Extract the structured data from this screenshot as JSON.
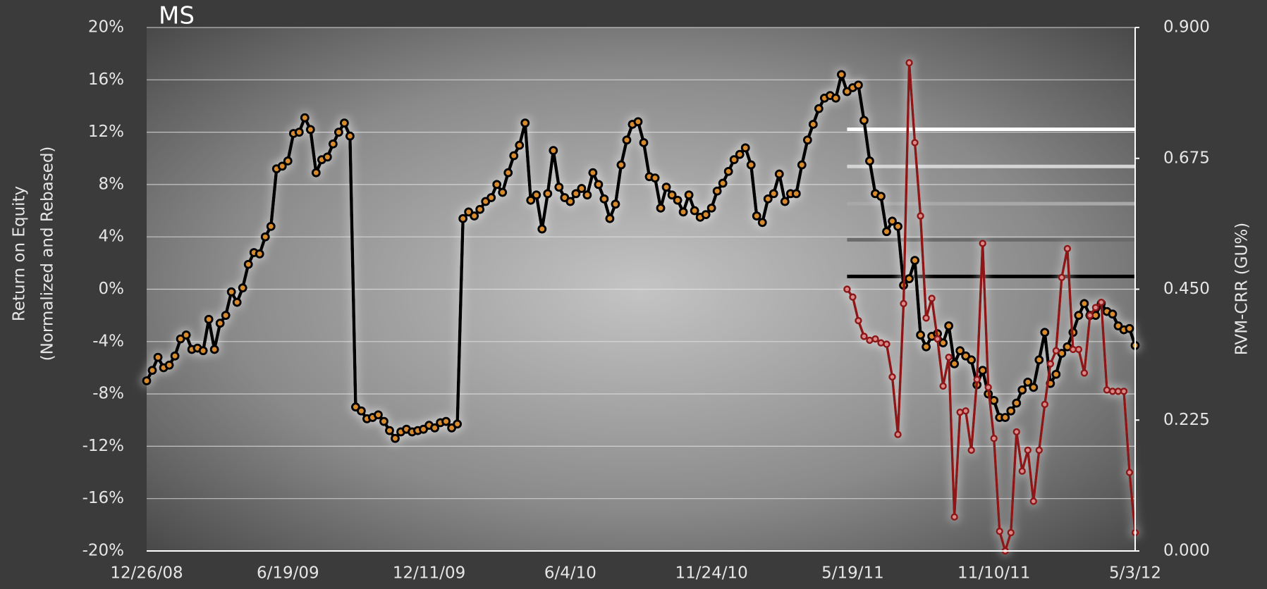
{
  "chart_data": {
    "type": "line",
    "title": "MS",
    "ylabel": [
      "Return on Equity",
      "(Normalized and Rebased)"
    ],
    "y2label": "RVM-CRR (GU%)",
    "categories": [
      "12/26/08",
      null,
      null,
      null,
      null,
      null,
      null,
      null,
      null,
      null,
      null,
      null,
      null,
      null,
      null,
      null,
      null,
      null,
      null,
      null,
      null,
      null,
      null,
      null,
      null,
      "6/19/09",
      null,
      null,
      null,
      null,
      null,
      null,
      null,
      null,
      null,
      null,
      null,
      null,
      null,
      null,
      null,
      null,
      null,
      null,
      null,
      null,
      null,
      null,
      null,
      null,
      "12/11/09",
      null,
      null,
      null,
      null,
      null,
      null,
      null,
      null,
      null,
      null,
      null,
      null,
      null,
      null,
      null,
      null,
      null,
      null,
      null,
      null,
      null,
      null,
      null,
      null,
      "6/4/10",
      null,
      null,
      null,
      null,
      null,
      null,
      null,
      null,
      null,
      null,
      null,
      null,
      null,
      null,
      null,
      null,
      null,
      null,
      null,
      null,
      null,
      null,
      null,
      null,
      "11/24/10",
      null,
      null,
      null,
      null,
      null,
      null,
      null,
      null,
      null,
      null,
      null,
      null,
      null,
      null,
      null,
      null,
      null,
      null,
      null,
      null,
      null,
      null,
      null,
      null,
      "5/19/11",
      null,
      null,
      null,
      null,
      null,
      null,
      null,
      null,
      null,
      null,
      null,
      null,
      null,
      null,
      null,
      null,
      null,
      null,
      null,
      null,
      null,
      null,
      null,
      null,
      "11/10/11",
      null,
      null,
      null,
      null,
      null,
      null,
      null,
      null,
      null,
      null,
      null,
      null,
      null,
      null,
      null,
      null,
      null,
      null,
      null,
      null,
      null,
      null,
      null,
      null,
      "5/3/12"
    ],
    "series": [
      {
        "color": "#000000",
        "marker_color": "#d98a2b",
        "values": [
          -7.0,
          -6.2,
          -5.2,
          -6.0,
          -5.8,
          -5.1,
          -3.8,
          -3.5,
          -4.6,
          -4.5,
          -4.7,
          -2.3,
          -4.6,
          -2.6,
          -2.0,
          -0.2,
          -1.0,
          0.1,
          1.9,
          2.8,
          2.7,
          4.0,
          4.8,
          9.2,
          9.4,
          9.8,
          11.9,
          12.0,
          13.1,
          12.2,
          8.9,
          9.9,
          10.1,
          11.1,
          12.0,
          12.7,
          11.7,
          -9.0,
          -9.3,
          -9.9,
          -9.8,
          -9.6,
          -10.1,
          -10.8,
          -11.4,
          -10.9,
          -10.7,
          -10.9,
          -10.8,
          -10.7,
          -10.4,
          -10.6,
          -10.2,
          -10.1,
          -10.6,
          -10.3,
          5.4,
          5.9,
          5.6,
          6.1,
          6.7,
          7.0,
          8.0,
          7.4,
          8.9,
          10.2,
          11.0,
          12.7,
          6.8,
          7.2,
          4.6,
          7.3,
          10.6,
          7.8,
          7.0,
          6.7,
          7.3,
          7.7,
          7.2,
          8.9,
          8.0,
          6.9,
          5.4,
          6.5,
          9.5,
          11.4,
          12.6,
          12.8,
          11.2,
          8.6,
          8.5,
          6.2,
          7.8,
          7.2,
          6.8,
          5.9,
          7.2,
          6.0,
          5.5,
          5.7,
          6.2,
          7.5,
          8.1,
          9.0,
          9.9,
          10.3,
          10.8,
          9.5,
          5.6,
          5.1,
          6.9,
          7.3,
          8.8,
          6.7,
          7.3,
          7.3,
          9.5,
          11.4,
          12.6,
          13.8,
          14.6,
          14.8,
          14.6,
          16.4,
          15.1,
          15.4,
          15.6,
          12.9,
          9.8,
          7.3,
          7.1,
          4.4,
          5.2,
          4.8,
          0.3,
          0.8,
          2.2,
          -3.5,
          -4.4,
          -3.6,
          -3.4,
          -4.1,
          -2.8,
          -5.7,
          -4.7,
          -5.1,
          -5.4,
          -7.3,
          -6.2,
          -8.0,
          -8.5,
          -9.8,
          -9.8,
          -9.3,
          -8.7,
          -7.7,
          -7.1,
          -7.5,
          -5.4,
          -3.3,
          -7.2,
          -6.5,
          -4.9,
          -4.4,
          -3.3,
          -2.0,
          -1.1,
          -2.0,
          -2.0,
          -1.1,
          -1.7,
          -1.9,
          -2.8,
          -3.1,
          -3.0,
          -4.3
        ]
      },
      {
        "color": "#8e1414",
        "marker_color": "#d88a8a",
        "values": [
          null,
          null,
          null,
          null,
          null,
          null,
          null,
          null,
          null,
          null,
          null,
          null,
          null,
          null,
          null,
          null,
          null,
          null,
          null,
          null,
          null,
          null,
          null,
          null,
          null,
          null,
          null,
          null,
          null,
          null,
          null,
          null,
          null,
          null,
          null,
          null,
          null,
          null,
          null,
          null,
          null,
          null,
          null,
          null,
          null,
          null,
          null,
          null,
          null,
          null,
          null,
          null,
          null,
          null,
          null,
          null,
          null,
          null,
          null,
          null,
          null,
          null,
          null,
          null,
          null,
          null,
          null,
          null,
          null,
          null,
          null,
          null,
          null,
          null,
          null,
          null,
          null,
          null,
          null,
          null,
          null,
          null,
          null,
          null,
          null,
          null,
          null,
          null,
          null,
          null,
          null,
          null,
          null,
          null,
          null,
          null,
          null,
          null,
          null,
          null,
          null,
          null,
          null,
          null,
          null,
          null,
          null,
          null,
          null,
          null,
          null,
          null,
          null,
          null,
          null,
          null,
          null,
          null,
          null,
          null,
          null,
          null,
          null,
          null,
          0.0,
          -0.6,
          -2.4,
          -3.6,
          -3.9,
          -3.8,
          -4.1,
          -4.2,
          -6.7,
          -11.1,
          -1.1,
          17.3,
          11.2,
          5.6,
          -2.2,
          -0.7,
          -3.8,
          -7.4,
          -5.2,
          -17.4,
          -9.4,
          -9.3,
          -12.3,
          -6.9,
          3.5,
          -7.5,
          -11.4,
          -18.5,
          -20.0,
          -18.6,
          -10.9,
          -13.9,
          -12.3,
          -16.2,
          -12.3,
          -8.8,
          -5.7,
          -4.7,
          0.9,
          3.1,
          -4.6,
          -4.6,
          -6.4,
          -2.0,
          -1.4,
          -1.0,
          -7.7,
          -7.8,
          -7.8,
          -7.8,
          -14.0,
          -18.6
        ]
      }
    ],
    "reference_lines": [
      {
        "value": 0.725,
        "color": "#ffffff",
        "axis": "y2"
      },
      {
        "value": 0.661,
        "color": "#d4d4d4",
        "axis": "y2"
      },
      {
        "value": 0.597,
        "color": "#a8a8a8",
        "axis": "y2"
      },
      {
        "value": 0.535,
        "color": "#6a6a6a",
        "axis": "y2"
      },
      {
        "value": 0.472,
        "color": "#000000",
        "axis": "y2"
      }
    ],
    "ylim": [
      -20,
      20
    ],
    "yticks": [
      {
        "value": -20,
        "label": "-20%"
      },
      {
        "value": -16,
        "label": "-16%"
      },
      {
        "value": -12,
        "label": "-12%"
      },
      {
        "value": -8,
        "label": "-8%"
      },
      {
        "value": -4,
        "label": "-4%"
      },
      {
        "value": 0,
        "label": "0%"
      },
      {
        "value": 4,
        "label": "4%"
      },
      {
        "value": 8,
        "label": "8%"
      },
      {
        "value": 12,
        "label": "12%"
      },
      {
        "value": 16,
        "label": "16%"
      },
      {
        "value": 20,
        "label": "20%"
      }
    ],
    "y2lim": [
      0,
      0.9
    ],
    "y2ticks": [
      {
        "value": 0,
        "label": "0.000"
      },
      {
        "value": 0.225,
        "label": "0.225"
      },
      {
        "value": 0.45,
        "label": "0.450"
      },
      {
        "value": 0.675,
        "label": "0.675"
      },
      {
        "value": 0.9,
        "label": "0.900"
      }
    ],
    "grid": true
  }
}
